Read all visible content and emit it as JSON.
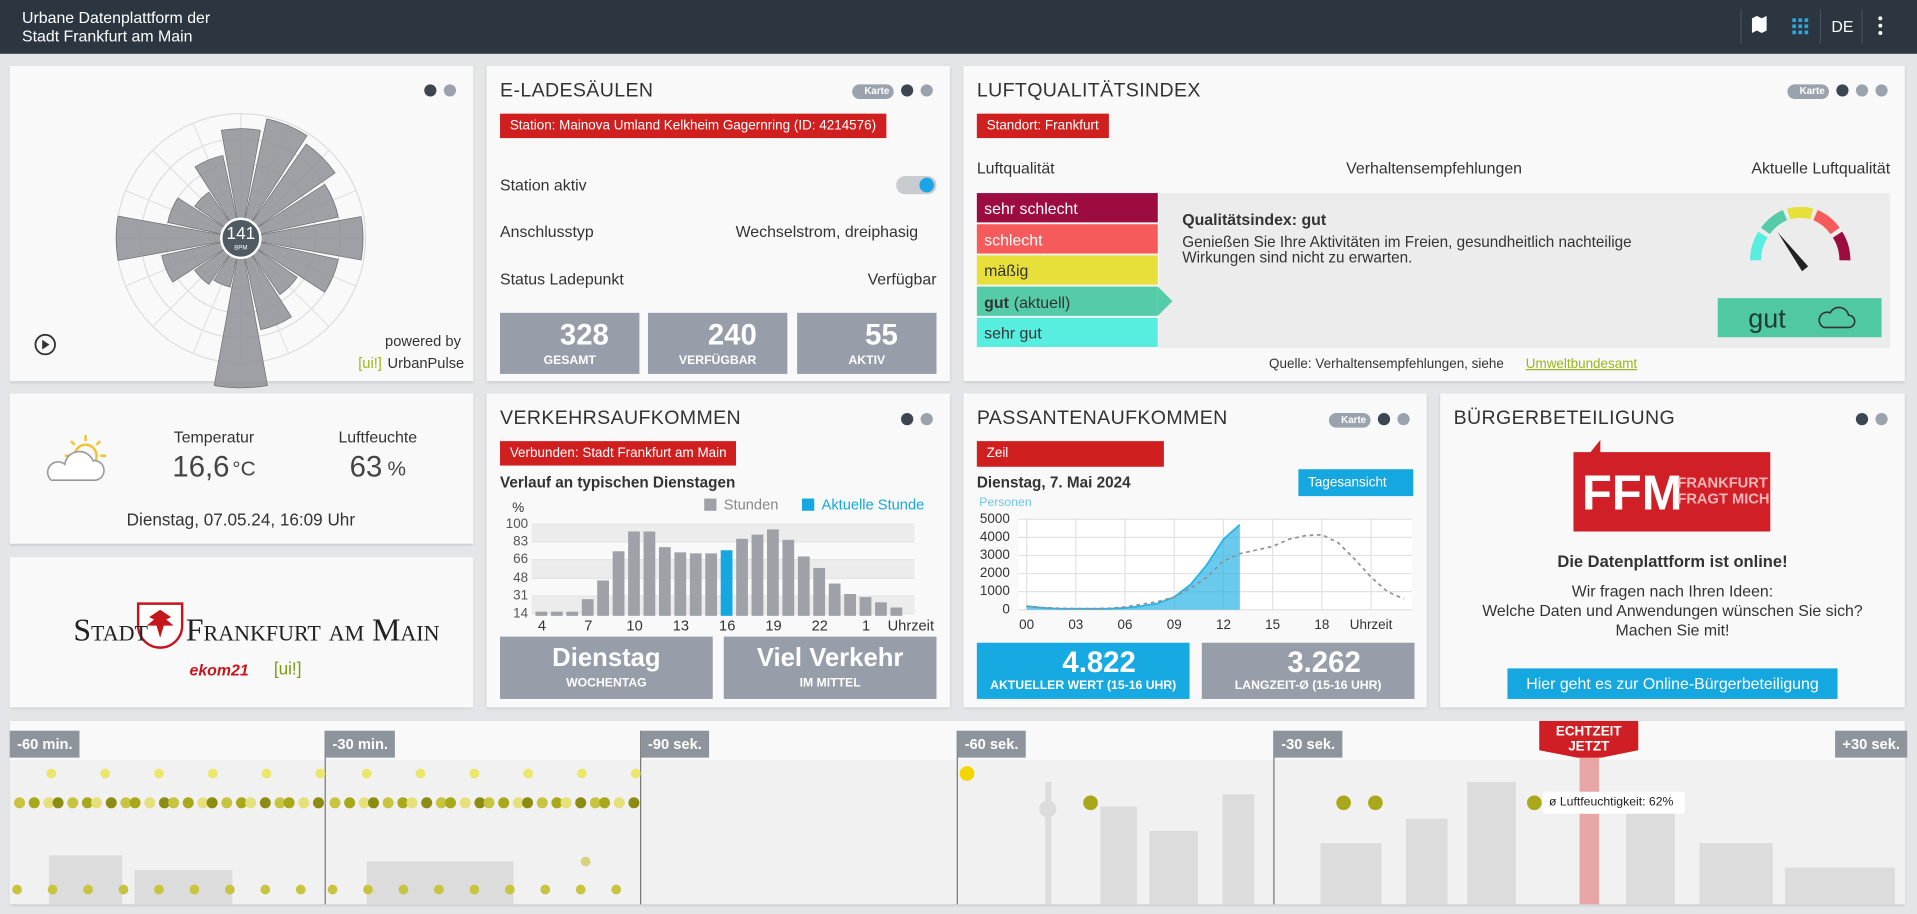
{
  "header": {
    "title_lines": [
      "Urbane Datenplattform der",
      "Stadt Frankfurt am Main"
    ],
    "language": "DE"
  },
  "windrose": {
    "type": "polar-bar",
    "center_value": "141",
    "center_unit": "BPM",
    "rlim": [
      0,
      100
    ],
    "values": [
      88,
      98,
      92,
      80,
      98,
      80,
      55,
      75,
      120,
      40,
      45,
      65,
      100,
      60,
      45,
      68
    ],
    "color": "#8e9196",
    "powered_by": "powered by",
    "brand_tag": "[ui!]",
    "brand_name": "UrbanPulse"
  },
  "ev": {
    "title": "E-LADESÄULEN",
    "map_badge": "Karte",
    "station": "Station:  Mainova Umland Kelkheim Gagernring (ID: 4214576)",
    "rows": [
      {
        "label": "Station aktiv"
      },
      {
        "label": "Anschlusstyp",
        "value": "Wechselstrom, dreiphasig"
      },
      {
        "label": "Status Ladepunkt",
        "value": "Verfügbar"
      }
    ],
    "stats": [
      {
        "value": 328,
        "label": "GESAMT"
      },
      {
        "value": 240,
        "label": "VERFÜGBAR"
      },
      {
        "value": 55,
        "label": "AKTIV"
      }
    ]
  },
  "air": {
    "title": "LUFTQUALITÄTSINDEX",
    "map_badge": "Karte",
    "location": "Standort: Frankfurt",
    "headers": [
      "Luftqualität",
      "Verhaltensempfehlungen",
      "Aktuelle Luftqualität"
    ],
    "levels": [
      {
        "label": "sehr schlecht",
        "color": "#9c0c40"
      },
      {
        "label": "schlecht",
        "color": "#f75a5a"
      },
      {
        "label": "mäßig",
        "color": "#e8e03a"
      },
      {
        "label": "gut",
        "color": "#55cba9"
      },
      {
        "label": "sehr gut",
        "color": "#57eee0"
      }
    ],
    "current_index": 3,
    "current_marker": "(aktuell)",
    "recommendation_title": "Qualitätsindex: gut",
    "recommendation_lines": [
      "Genießen Sie Ihre Aktivitäten im Freien, gesundheitlich nachteilige",
      "Wirkungen sind nicht zu erwarten."
    ],
    "gauge_label": "gut",
    "source": "Quelle: Verhaltensempfehlungen, siehe",
    "source_link": "Umweltbundesamt"
  },
  "weather": {
    "temperature_label": "Temperatur",
    "temperature": "16,6",
    "temperature_unit": "°C",
    "humidity_label": "Luftfeuchte",
    "humidity": 63,
    "humidity_unit": "%",
    "timestamp": "Dienstag, 07.05.24, 16:09 Uhr"
  },
  "logo": {
    "city_prefix": "Stadt",
    "city_name": "Frankfurt am Main",
    "partner": "ekom21",
    "brand_tag": "[ui!]"
  },
  "traffic": {
    "title": "VERKEHRSAUFKOMMEN",
    "connection": "Verbunden: Stadt Frankfurt am Main",
    "chart": {
      "type": "bar",
      "title": "Verlauf an typischen Dienstagen",
      "y_label": "%",
      "x_label": "Uhrzeit",
      "categories": [
        "4",
        null,
        null,
        "7",
        null,
        null,
        "10",
        null,
        null,
        "13",
        null,
        null,
        "16",
        null,
        null,
        "19",
        null,
        null,
        "22",
        null,
        null,
        "1",
        null,
        null
      ],
      "series": [
        {
          "name": "Stunden",
          "color": "#9ea1a8",
          "values": [
            16,
            16,
            16,
            28,
            46,
            74,
            93,
            93,
            78,
            73,
            72,
            72,
            null,
            86,
            90,
            95,
            85,
            69,
            58,
            43,
            33,
            30,
            25,
            20
          ]
        },
        {
          "name": "Aktuelle Stunde",
          "color": "#15a8e0",
          "values": [
            null,
            null,
            null,
            null,
            null,
            null,
            null,
            null,
            null,
            null,
            null,
            null,
            75,
            null,
            null,
            null,
            null,
            null,
            null,
            null,
            null,
            null,
            null,
            null
          ]
        }
      ],
      "ylim": [
        12,
        100
      ],
      "yticks": [
        14,
        31,
        48,
        66,
        83,
        100
      ],
      "grid": true
    },
    "stats": [
      {
        "value": "Dienstag",
        "label": "WOCHENTAG"
      },
      {
        "value": "Viel Verkehr",
        "label": "IM MITTEL"
      }
    ]
  },
  "pedestrians": {
    "title": "PASSANTENAUFKOMMEN",
    "map_badge": "Karte",
    "location": "Zeil",
    "date": "Dienstag, 7. Mai 2024",
    "view": "Tagesansicht",
    "chart": {
      "type": "line",
      "y_label": "Personen",
      "x": [
        0,
        1,
        2,
        3,
        4,
        5,
        6,
        7,
        8,
        9,
        10,
        11,
        12,
        13,
        14,
        15,
        16,
        17,
        18,
        19,
        20,
        21,
        22,
        23
      ],
      "xlim": [
        -0.5,
        23.5
      ],
      "xticks": [
        {
          "value": 0,
          "label": "00"
        },
        {
          "value": 3,
          "label": "03"
        },
        {
          "value": 6,
          "label": "06"
        },
        {
          "value": 9,
          "label": "09"
        },
        12,
        15,
        18,
        {
          "value": 21,
          "label": "Uhrzeit"
        }
      ],
      "ylim": [
        0,
        5000
      ],
      "yticks": [
        0,
        1000,
        2000,
        3000,
        4000,
        5000
      ],
      "grid": true,
      "series": [
        {
          "color": "#2bb4e6",
          "fill": true,
          "values": [
            200,
            100,
            50,
            50,
            50,
            50,
            100,
            200,
            350,
            700,
            1400,
            2500,
            3900,
            4700,
            null,
            null,
            null,
            null,
            null,
            null,
            null,
            null,
            null,
            null
          ]
        },
        {
          "color": "#8e9196",
          "dashed": true,
          "values": [
            200,
            120,
            80,
            60,
            60,
            80,
            150,
            300,
            450,
            700,
            1200,
            1800,
            2700,
            3100,
            3300,
            3500,
            3900,
            4100,
            4150,
            3700,
            2800,
            1800,
            1000,
            600
          ]
        }
      ]
    },
    "stats": [
      {
        "value": "4.822",
        "label": "AKTUELLER WERT (15-16 UHR)"
      },
      {
        "value": "3.262",
        "label": "LANGZEIT-Ø (15-16 UHR)"
      }
    ]
  },
  "citizen": {
    "title": "BÜRGERBETEILIGUNG",
    "logo_short": "FFM",
    "logo_lines": [
      "FRANKFURT",
      "FRAGT MICH"
    ],
    "headline": "Die Datenplattform ist online!",
    "lines": [
      "Wir fragen nach Ihren Ideen:",
      "Welche Daten und Anwendungen wünschen Sie sich?",
      "Machen Sie mit!"
    ],
    "button": "Hier geht es zur Online-Bürgerbeteiligung"
  },
  "timeline": {
    "labels": [
      "-60 min.",
      "-30 min.",
      "-90 sek.",
      "-60 sek.",
      "-30 sek.",
      "+30 sek."
    ],
    "now_lines": [
      "ECHTZEIT",
      "JETZT"
    ],
    "tooltip": "ø Luftfeuchtigkeit: 62%"
  }
}
